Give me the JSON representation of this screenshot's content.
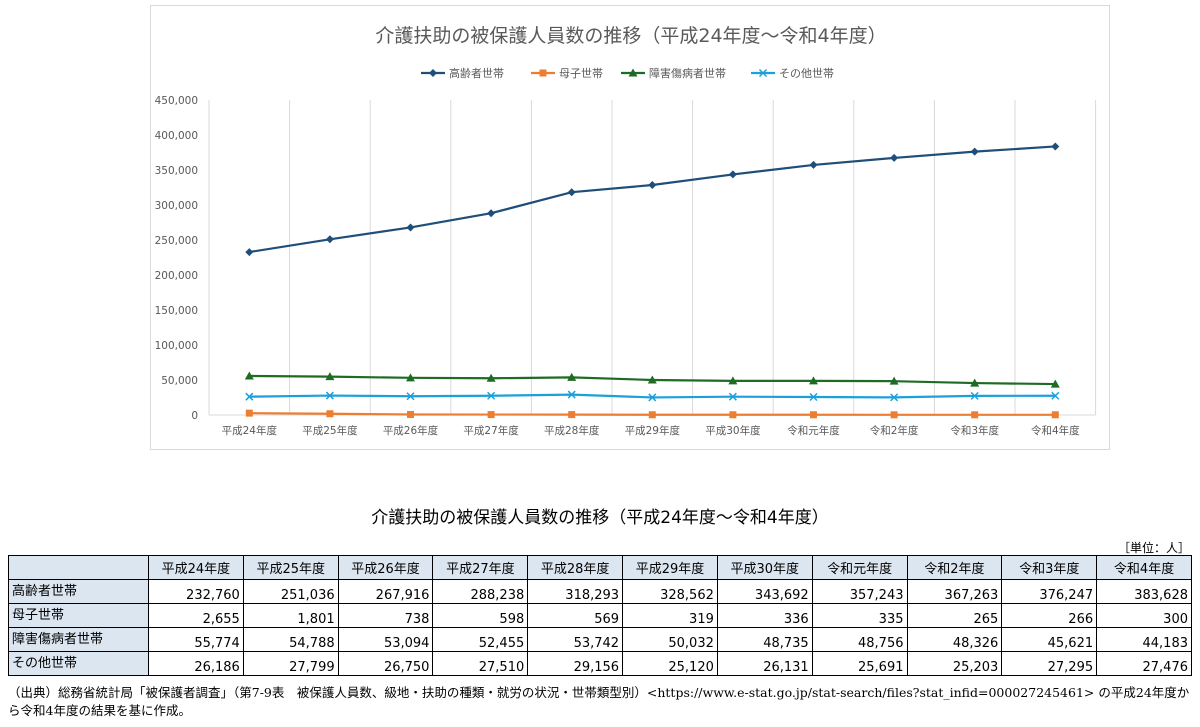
{
  "chart_data": {
    "type": "line",
    "title": "介護扶助の被保護人員数の推移（平成24年度～令和4年度）",
    "categories": [
      "平成24年度",
      "平成25年度",
      "平成26年度",
      "平成27年度",
      "平成28年度",
      "平成29年度",
      "平成30年度",
      "令和元年度",
      "令和2年度",
      "令和3年度",
      "令和4年度"
    ],
    "ylim": [
      0,
      450000
    ],
    "yticks": [
      0,
      50000,
      100000,
      150000,
      200000,
      250000,
      300000,
      350000,
      400000,
      450000
    ],
    "ytick_labels": [
      "0",
      "50,000",
      "100,000",
      "150,000",
      "200,000",
      "250,000",
      "300,000",
      "350,000",
      "400,000",
      "450,000"
    ],
    "grid": "vertical",
    "legend": "top",
    "series": [
      {
        "name": "高齢者世帯",
        "color": "#1f4e79",
        "marker": "diamond",
        "values": [
          232760,
          251036,
          267916,
          288238,
          318293,
          328562,
          343692,
          357243,
          367263,
          376247,
          383628
        ]
      },
      {
        "name": "母子世帯",
        "color": "#ed7d31",
        "marker": "square",
        "values": [
          2655,
          1801,
          738,
          598,
          569,
          319,
          336,
          335,
          265,
          266,
          300
        ]
      },
      {
        "name": "障害傷病者世帯",
        "color": "#1e6b23",
        "marker": "triangle",
        "values": [
          55774,
          54788,
          53094,
          52455,
          53742,
          50032,
          48735,
          48756,
          48326,
          45621,
          44183
        ]
      },
      {
        "name": "その他世帯",
        "color": "#1ca0dc",
        "marker": "x",
        "values": [
          26186,
          27799,
          26750,
          27510,
          29156,
          25120,
          26131,
          25691,
          25203,
          27295,
          27476
        ]
      }
    ]
  },
  "table": {
    "title": "介護扶助の被保護人員数の推移（平成24年度～令和4年度）",
    "unit": "［単位：人］",
    "headers": [
      "平成24年度",
      "平成25年度",
      "平成26年度",
      "平成27年度",
      "平成28年度",
      "平成29年度",
      "平成30年度",
      "令和元年度",
      "令和2年度",
      "令和3年度",
      "令和4年度"
    ],
    "rows": [
      {
        "label": "高齢者世帯",
        "values": [
          "232,760",
          "251,036",
          "267,916",
          "288,238",
          "318,293",
          "328,562",
          "343,692",
          "357,243",
          "367,263",
          "376,247",
          "383,628"
        ]
      },
      {
        "label": "母子世帯",
        "values": [
          "2,655",
          "1,801",
          "738",
          "598",
          "569",
          "319",
          "336",
          "335",
          "265",
          "266",
          "300"
        ]
      },
      {
        "label": "障害傷病者世帯",
        "values": [
          "55,774",
          "54,788",
          "53,094",
          "52,455",
          "53,742",
          "50,032",
          "48,735",
          "48,756",
          "48,326",
          "45,621",
          "44,183"
        ]
      },
      {
        "label": "その他世帯",
        "values": [
          "26,186",
          "27,799",
          "26,750",
          "27,510",
          "29,156",
          "25,120",
          "26,131",
          "25,691",
          "25,203",
          "27,295",
          "27,476"
        ]
      }
    ]
  },
  "source": "（出典）総務省統計局「被保護者調査」（第7-9表　被保護人員数、級地・扶助の種類・就労の状況・世帯類型別）<https://www.e-stat.go.jp/stat-search/files?stat_infid=000027245461> の平成24年度から令和4年度の結果を基に作成。"
}
